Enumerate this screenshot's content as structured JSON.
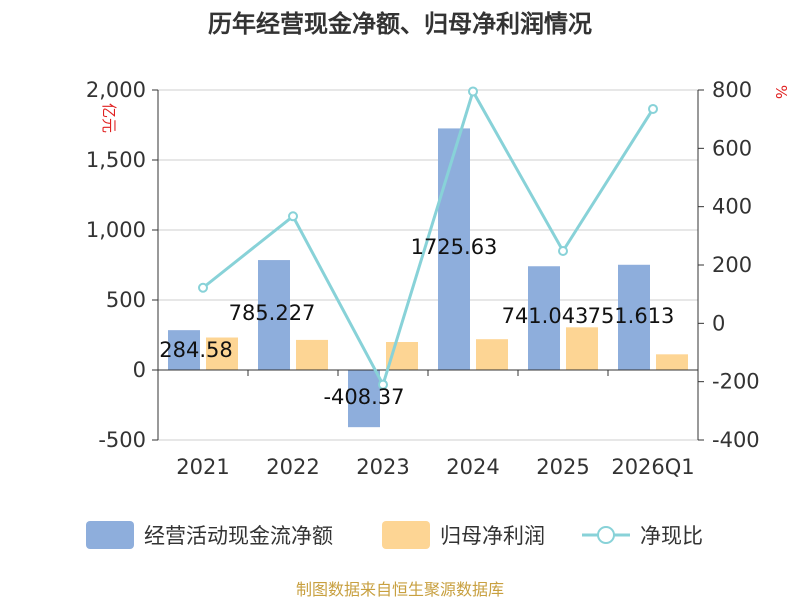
{
  "chart_data": {
    "type": "bar",
    "title": "历年经营现金净额、归母净利润情况",
    "left_unit": "亿元",
    "right_unit": "%",
    "categories": [
      "2021",
      "2022",
      "2023",
      "2024",
      "2025",
      "2026Q1"
    ],
    "left_axis": {
      "ylim": [
        -500,
        2000
      ],
      "ticks": [
        -500,
        0,
        500,
        1000,
        1500,
        2000
      ],
      "tick_labels": [
        "-500",
        "0",
        "500",
        "1,000",
        "1,500",
        "2,000"
      ]
    },
    "right_axis": {
      "ylim": [
        -400,
        800
      ],
      "ticks": [
        -400,
        -200,
        0,
        200,
        400,
        600,
        800
      ],
      "tick_labels": [
        "-400",
        "-200",
        "0",
        "200",
        "400",
        "600",
        "800"
      ]
    },
    "series": [
      {
        "name": "经营活动现金流净额",
        "type": "bar",
        "axis": "left",
        "color": "#8eaedc",
        "values": [
          284.58,
          785.227,
          -408.37,
          1725.63,
          741.043,
          751.613
        ],
        "labels": [
          "284.58",
          "785.227",
          "-408.37",
          "1725.63",
          "741.043",
          "751.613"
        ]
      },
      {
        "name": "归母净利润",
        "type": "bar",
        "axis": "left",
        "color": "#fdd594",
        "values": [
          232,
          215,
          200,
          220,
          305,
          112
        ]
      },
      {
        "name": "净现比",
        "type": "line",
        "axis": "right",
        "color": "#88d2d8",
        "values": [
          122,
          367,
          -210,
          795,
          248,
          735
        ]
      }
    ],
    "grid": true,
    "legend": "bottom"
  },
  "source_text": "制图数据来自恒生聚源数据库"
}
